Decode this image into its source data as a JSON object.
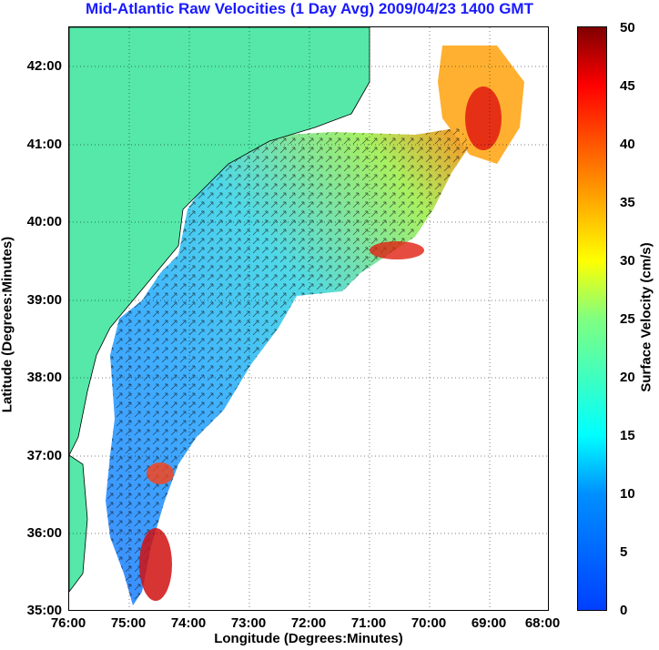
{
  "title": "Mid-Atlantic Raw Velocities (1 Day Avg) 2009/04/23 1400 GMT",
  "map": {
    "x_axis_label": "Longitude (Degrees:Minutes)",
    "y_axis_label": "Latitude (Degrees:Minutes)",
    "lon_ticks": [
      "76:00",
      "75:00",
      "74:00",
      "73:00",
      "72:00",
      "71:00",
      "70:00",
      "69:00",
      "68:00"
    ],
    "lat_ticks": [
      "42:00",
      "41:00",
      "40:00",
      "39:00",
      "38:00",
      "37:00",
      "36:00",
      "35:00"
    ],
    "land_color": "#55e8a8",
    "grid": true
  },
  "colorbar": {
    "label": "Surface Velocity (cm/s)",
    "ticks": [
      "50",
      "45",
      "40",
      "35",
      "30",
      "25",
      "20",
      "15",
      "10",
      "5",
      "0"
    ],
    "range": [
      0,
      50
    ],
    "colormap": "jet"
  }
}
